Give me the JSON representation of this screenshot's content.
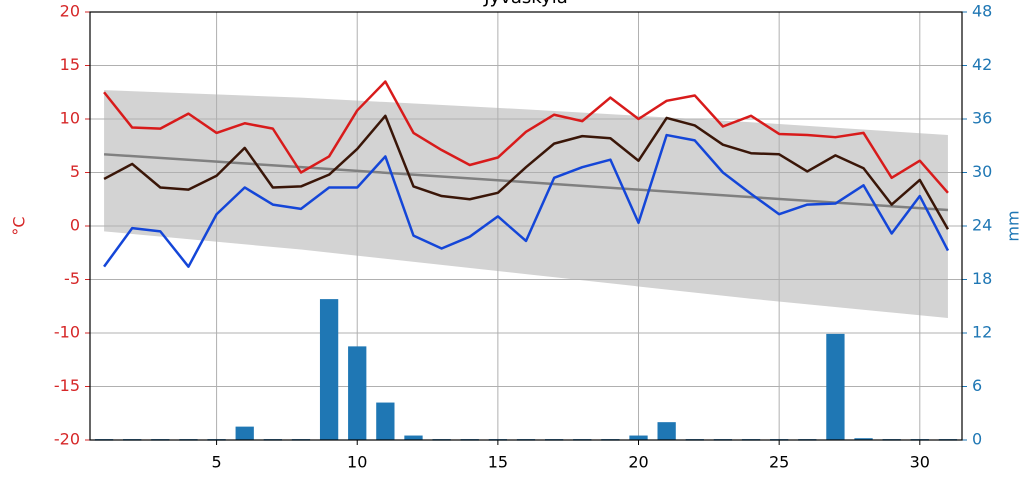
{
  "chart_data": {
    "type": "line",
    "title": "Jyväskylä",
    "ylabel": "°C",
    "y2label": "mm",
    "xlim": [
      0.5,
      31.5
    ],
    "xticks": [
      5,
      10,
      15,
      20,
      25,
      30
    ],
    "ylim": [
      -20,
      20
    ],
    "yticks": [
      -20,
      -15,
      -10,
      -5,
      0,
      5,
      10,
      15,
      20
    ],
    "y2lim": [
      0,
      48
    ],
    "y2ticks": [
      0,
      6,
      12,
      18,
      24,
      30,
      36,
      42,
      48
    ],
    "grid": true,
    "ycolor": "#d62728",
    "y2color": "#1f77b4",
    "x": [
      1,
      2,
      3,
      4,
      5,
      6,
      7,
      8,
      9,
      10,
      11,
      12,
      13,
      14,
      15,
      16,
      17,
      18,
      19,
      20,
      21,
      22,
      23,
      24,
      25,
      26,
      27,
      28,
      29,
      30,
      31
    ],
    "band": {
      "x": [
        1,
        8,
        16,
        24,
        31
      ],
      "upper": [
        12.7,
        12.0,
        10.9,
        9.7,
        8.5
      ],
      "lower": [
        -0.5,
        -2.2,
        -4.5,
        -6.8,
        -8.6
      ],
      "color": "#d3d3d3"
    },
    "normal": {
      "x": [
        1,
        8,
        16,
        24,
        31
      ],
      "values": [
        6.7,
        5.5,
        4.1,
        2.7,
        1.5
      ],
      "color": "#808080"
    },
    "series": [
      {
        "type": "bar",
        "axis": "y2",
        "color": "#1f77b4",
        "values": [
          0.1,
          0.1,
          0.1,
          0.1,
          0.1,
          1.5,
          0.1,
          0.1,
          15.8,
          10.5,
          4.2,
          0.5,
          0.1,
          0.1,
          0.1,
          0.1,
          0.1,
          0.1,
          0.1,
          0.5,
          2.0,
          0.1,
          0.1,
          0.1,
          0.1,
          0.1,
          11.9,
          0.2,
          0.1,
          0.1,
          0.1
        ]
      },
      {
        "type": "line",
        "color": "#d81b1b",
        "values": [
          12.5,
          9.2,
          9.1,
          10.5,
          8.7,
          9.6,
          9.1,
          5.0,
          6.5,
          10.8,
          13.5,
          8.7,
          7.1,
          5.7,
          6.4,
          8.8,
          10.4,
          9.8,
          12.0,
          10.0,
          11.7,
          12.2,
          9.3,
          10.3,
          8.6,
          8.5,
          8.3,
          8.7,
          4.5,
          6.1,
          3.1
        ]
      },
      {
        "type": "line",
        "color": "#3a1608",
        "values": [
          4.4,
          5.8,
          3.6,
          3.4,
          4.7,
          7.3,
          3.6,
          3.7,
          4.8,
          7.2,
          10.3,
          3.7,
          2.8,
          2.5,
          3.1,
          5.5,
          7.7,
          8.4,
          8.2,
          6.1,
          10.1,
          9.4,
          7.6,
          6.8,
          6.7,
          5.1,
          6.6,
          5.4,
          2.0,
          4.3,
          -0.3
        ]
      },
      {
        "type": "line",
        "color": "#1446d8",
        "values": [
          -3.8,
          -0.2,
          -0.5,
          -3.8,
          1.1,
          3.6,
          2.0,
          1.6,
          3.6,
          3.6,
          6.5,
          -0.9,
          -2.1,
          -1.0,
          0.9,
          -1.4,
          4.5,
          5.5,
          6.2,
          0.3,
          8.5,
          8.0,
          5.0,
          3.0,
          1.1,
          2.0,
          2.1,
          3.8,
          -0.7,
          2.8,
          -2.3
        ]
      }
    ]
  }
}
